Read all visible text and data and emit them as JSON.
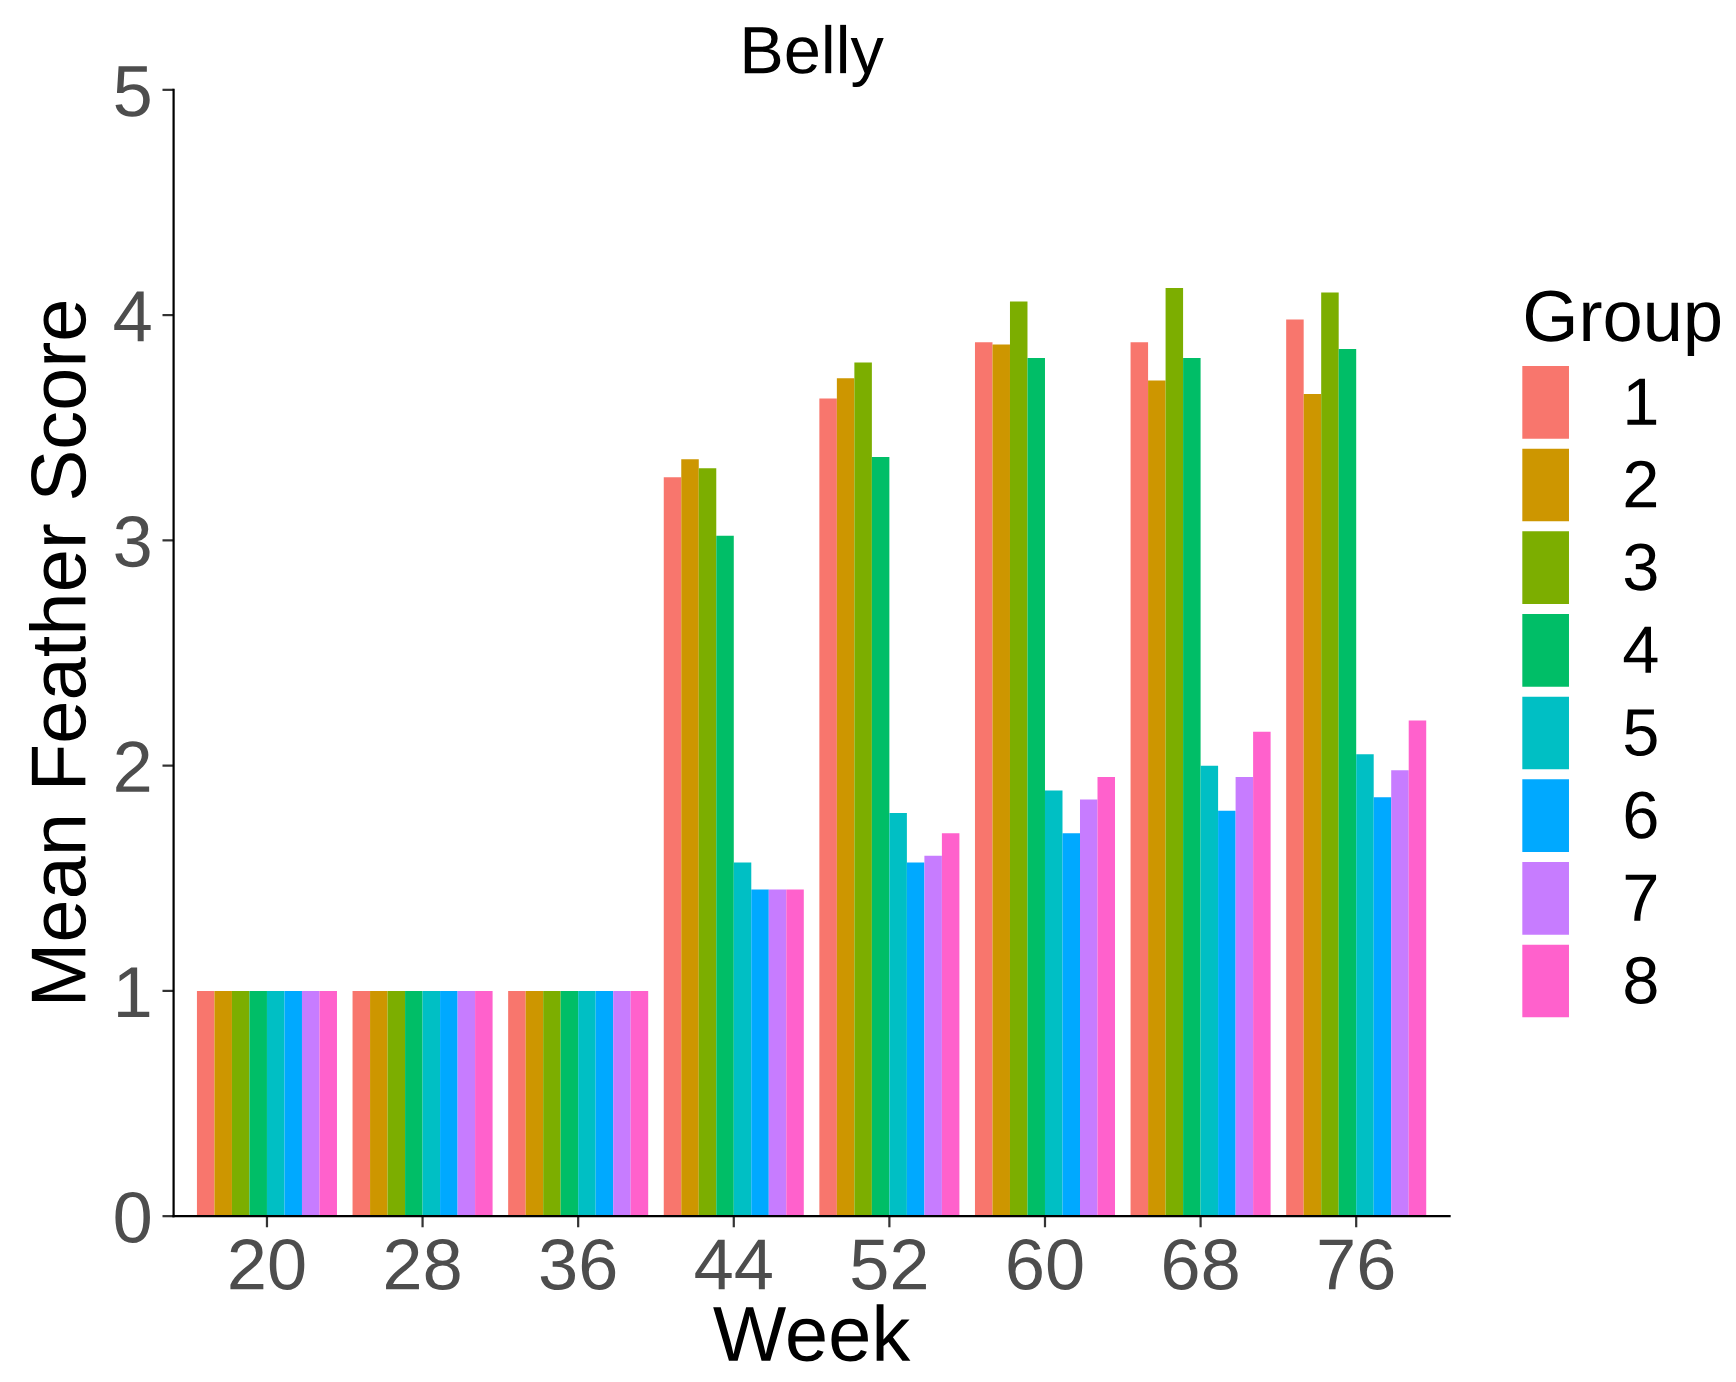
{
  "chart_data": {
    "type": "bar",
    "title": "Belly",
    "xlabel": "Week",
    "ylabel": "Mean Feather Score",
    "legend_title": "Group",
    "legend": "right",
    "categories": [
      "20",
      "28",
      "36",
      "44",
      "52",
      "60",
      "68",
      "76"
    ],
    "ylim": [
      0,
      5
    ],
    "yticks": [
      0,
      1,
      2,
      3,
      4,
      5
    ],
    "grid": false,
    "series": [
      {
        "name": "1",
        "color": "#f8766d",
        "values": [
          1,
          1,
          1,
          3.28,
          3.63,
          3.88,
          3.88,
          3.98
        ]
      },
      {
        "name": "2",
        "color": "#cd9600",
        "values": [
          1,
          1,
          1,
          3.36,
          3.72,
          3.87,
          3.71,
          3.65
        ]
      },
      {
        "name": "3",
        "color": "#7cae00",
        "values": [
          1,
          1,
          1,
          3.32,
          3.79,
          4.06,
          4.12,
          4.1
        ]
      },
      {
        "name": "4",
        "color": "#00be67",
        "values": [
          1,
          1,
          1,
          3.02,
          3.37,
          3.81,
          3.81,
          3.85
        ]
      },
      {
        "name": "5",
        "color": "#00bfc4",
        "values": [
          1,
          1,
          1,
          1.57,
          1.79,
          1.89,
          2.0,
          2.05
        ]
      },
      {
        "name": "6",
        "color": "#00a9ff",
        "values": [
          1,
          1,
          1,
          1.45,
          1.57,
          1.7,
          1.8,
          1.86
        ]
      },
      {
        "name": "7",
        "color": "#c77cff",
        "values": [
          1,
          1,
          1,
          1.45,
          1.6,
          1.85,
          1.95,
          1.98
        ]
      },
      {
        "name": "8",
        "color": "#ff61cc",
        "values": [
          1,
          1,
          1,
          1.45,
          1.7,
          1.95,
          2.15,
          2.2
        ]
      }
    ]
  }
}
